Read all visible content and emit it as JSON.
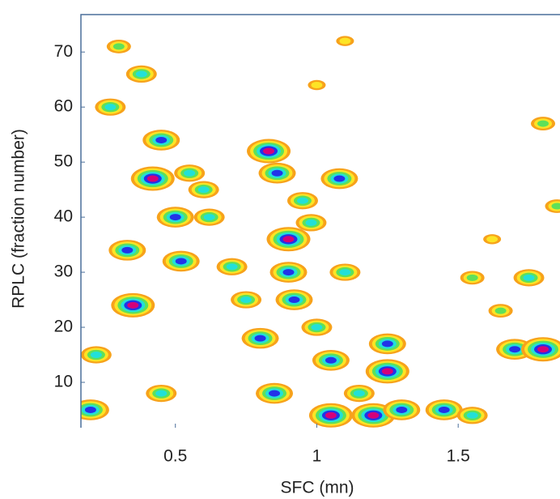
{
  "chart_data": {
    "type": "contour",
    "xlabel": "SFC (mn)",
    "ylabel": "RPLC (fraction number)",
    "xlim": [
      0.166,
      1.86
    ],
    "ylim": [
      1.76,
      76.8
    ],
    "xticks": [
      0.5,
      1,
      1.5
    ],
    "yticks": [
      10,
      20,
      30,
      40,
      50,
      60,
      70
    ],
    "level_colors": [
      "#f7a21b",
      "#fde425",
      "#5fe05a",
      "#22e0d8",
      "#2233e8",
      "#d4007a"
    ],
    "spots": [
      {
        "x": 0.35,
        "y": 24,
        "level": 5
      },
      {
        "x": 0.42,
        "y": 47,
        "level": 5
      },
      {
        "x": 0.45,
        "y": 54,
        "level": 4
      },
      {
        "x": 0.33,
        "y": 34,
        "level": 4
      },
      {
        "x": 0.27,
        "y": 60,
        "level": 3
      },
      {
        "x": 0.38,
        "y": 66,
        "level": 3
      },
      {
        "x": 0.3,
        "y": 71,
        "level": 2
      },
      {
        "x": 0.5,
        "y": 40,
        "level": 4
      },
      {
        "x": 0.52,
        "y": 32,
        "level": 4
      },
      {
        "x": 0.55,
        "y": 48,
        "level": 3
      },
      {
        "x": 0.6,
        "y": 45,
        "level": 3
      },
      {
        "x": 0.62,
        "y": 40,
        "level": 3
      },
      {
        "x": 0.7,
        "y": 31,
        "level": 3
      },
      {
        "x": 0.75,
        "y": 25,
        "level": 3
      },
      {
        "x": 0.8,
        "y": 18,
        "level": 4
      },
      {
        "x": 0.83,
        "y": 52,
        "level": 5
      },
      {
        "x": 0.86,
        "y": 48,
        "level": 4
      },
      {
        "x": 0.9,
        "y": 36,
        "level": 5
      },
      {
        "x": 0.9,
        "y": 30,
        "level": 4
      },
      {
        "x": 0.92,
        "y": 25,
        "level": 4
      },
      {
        "x": 0.85,
        "y": 8,
        "level": 4
      },
      {
        "x": 0.95,
        "y": 43,
        "level": 3
      },
      {
        "x": 0.98,
        "y": 39,
        "level": 3
      },
      {
        "x": 1.0,
        "y": 20,
        "level": 3
      },
      {
        "x": 1.05,
        "y": 14,
        "level": 4
      },
      {
        "x": 1.08,
        "y": 47,
        "level": 4
      },
      {
        "x": 1.1,
        "y": 30,
        "level": 3
      },
      {
        "x": 1.05,
        "y": 4,
        "level": 5
      },
      {
        "x": 1.2,
        "y": 4,
        "level": 5
      },
      {
        "x": 1.25,
        "y": 12,
        "level": 5
      },
      {
        "x": 1.3,
        "y": 5,
        "level": 4
      },
      {
        "x": 1.25,
        "y": 17,
        "level": 4
      },
      {
        "x": 1.15,
        "y": 8,
        "level": 3
      },
      {
        "x": 1.45,
        "y": 5,
        "level": 4
      },
      {
        "x": 1.55,
        "y": 4,
        "level": 3
      },
      {
        "x": 1.7,
        "y": 16,
        "level": 4
      },
      {
        "x": 1.8,
        "y": 16,
        "level": 5
      },
      {
        "x": 1.65,
        "y": 23,
        "level": 2
      },
      {
        "x": 1.55,
        "y": 29,
        "level": 2
      },
      {
        "x": 1.75,
        "y": 29,
        "level": 3
      },
      {
        "x": 1.8,
        "y": 57,
        "level": 2
      },
      {
        "x": 1.85,
        "y": 42,
        "level": 2
      },
      {
        "x": 0.2,
        "y": 5,
        "level": 4
      },
      {
        "x": 0.22,
        "y": 15,
        "level": 3
      },
      {
        "x": 0.45,
        "y": 8,
        "level": 3
      },
      {
        "x": 1.62,
        "y": 36,
        "level": 1
      },
      {
        "x": 1.1,
        "y": 72,
        "level": 1
      },
      {
        "x": 1.0,
        "y": 64,
        "level": 1
      }
    ]
  }
}
